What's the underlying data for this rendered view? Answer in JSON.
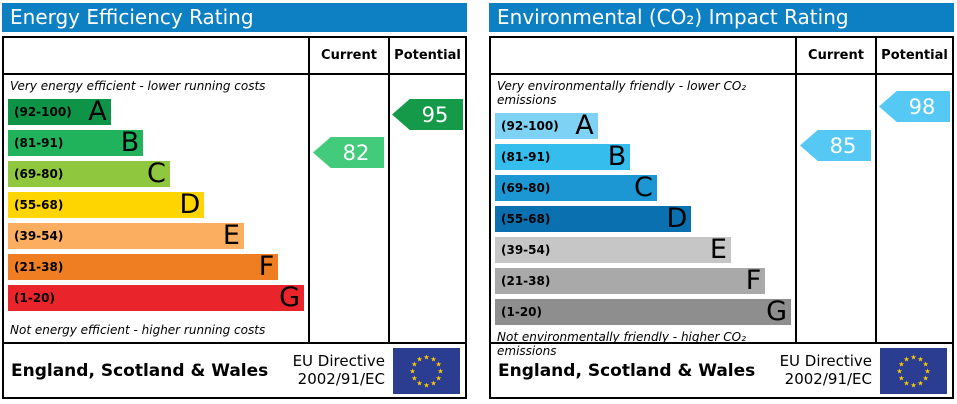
{
  "eu_flag": {
    "background": "#2b3d90",
    "star_color": "#ffcc00",
    "star_count": 12
  },
  "panels": [
    {
      "title": "Energy Efficiency Rating",
      "title_bg": "#0d80c4",
      "columns": [
        "Current",
        "Potential"
      ],
      "top_caption": "Very energy efficient - lower running costs",
      "bottom_caption": "Not energy efficient - higher running costs",
      "bands": [
        {
          "letter": "A",
          "range": "(92-100)",
          "color": "#0e9447",
          "width_pct": 34.7
        },
        {
          "letter": "B",
          "range": "(81-91)",
          "color": "#20b35c",
          "width_pct": 45.7
        },
        {
          "letter": "C",
          "range": "(69-80)",
          "color": "#8fc73e",
          "width_pct": 54.7
        },
        {
          "letter": "D",
          "range": "(55-68)",
          "color": "#ffd500",
          "width_pct": 66.3
        },
        {
          "letter": "E",
          "range": "(39-54)",
          "color": "#fbae60",
          "width_pct": 79.7
        },
        {
          "letter": "F",
          "range": "(21-38)",
          "color": "#ef7d21",
          "width_pct": 91.3
        },
        {
          "letter": "G",
          "range": "(1-20)",
          "color": "#e9242a",
          "width_pct": 100
        }
      ],
      "current": {
        "value": "82",
        "color": "#42cb7b",
        "band": "B"
      },
      "potential": {
        "value": "95",
        "color": "#149a49",
        "band": "A"
      },
      "footer_region": "England, Scotland & Wales",
      "directive_line1": "EU Directive",
      "directive_line2": "2002/91/EC"
    },
    {
      "title": "Environmental (CO₂) Impact Rating",
      "title_bg": "#0d80c4",
      "columns": [
        "Current",
        "Potential"
      ],
      "top_caption": "Very environmentally friendly - lower CO₂ emissions",
      "bottom_caption": "Not environmentally friendly - higher CO₂ emissions",
      "bands": [
        {
          "letter": "A",
          "range": "(92-100)",
          "color": "#7ed3f4",
          "width_pct": 34.7
        },
        {
          "letter": "B",
          "range": "(81-91)",
          "color": "#35bdee",
          "width_pct": 45.7
        },
        {
          "letter": "C",
          "range": "(69-80)",
          "color": "#1c97d4",
          "width_pct": 54.7
        },
        {
          "letter": "D",
          "range": "(55-68)",
          "color": "#0a70af",
          "width_pct": 66.3
        },
        {
          "letter": "E",
          "range": "(39-54)",
          "color": "#c6c6c6",
          "width_pct": 79.7
        },
        {
          "letter": "F",
          "range": "(21-38)",
          "color": "#a9a9a9",
          "width_pct": 91.3
        },
        {
          "letter": "G",
          "range": "(1-20)",
          "color": "#8e8e8e",
          "width_pct": 100
        }
      ],
      "current": {
        "value": "85",
        "color": "#55c8f3",
        "band": "B"
      },
      "potential": {
        "value": "98",
        "color": "#55c8f3",
        "band": "A"
      },
      "footer_region": "England, Scotland & Wales",
      "directive_line1": "EU Directive",
      "directive_line2": "2002/91/EC"
    }
  ],
  "chart_data": [
    {
      "type": "bar",
      "title": "Energy Efficiency Rating",
      "categories": [
        "A (92-100)",
        "B (81-91)",
        "C (69-80)",
        "D (55-68)",
        "E (39-54)",
        "F (21-38)",
        "G (1-20)"
      ],
      "series": [
        {
          "name": "Current",
          "values": [
            82
          ],
          "band": "B"
        },
        {
          "name": "Potential",
          "values": [
            95
          ],
          "band": "A"
        }
      ],
      "xlabel": "",
      "ylabel": "",
      "ylim": [
        1,
        100
      ],
      "annotations": [
        "Very energy efficient - lower running costs",
        "Not energy efficient - higher running costs",
        "England, Scotland & Wales",
        "EU Directive 2002/91/EC"
      ]
    },
    {
      "type": "bar",
      "title": "Environmental (CO₂) Impact Rating",
      "categories": [
        "A (92-100)",
        "B (81-91)",
        "C (69-80)",
        "D (55-68)",
        "E (39-54)",
        "F (21-38)",
        "G (1-20)"
      ],
      "series": [
        {
          "name": "Current",
          "values": [
            85
          ],
          "band": "B"
        },
        {
          "name": "Potential",
          "values": [
            98
          ],
          "band": "A"
        }
      ],
      "xlabel": "",
      "ylabel": "",
      "ylim": [
        1,
        100
      ],
      "annotations": [
        "Very environmentally friendly - lower CO₂ emissions",
        "Not environmentally friendly - higher CO₂ emissions",
        "England, Scotland & Wales",
        "EU Directive 2002/91/EC"
      ]
    }
  ]
}
